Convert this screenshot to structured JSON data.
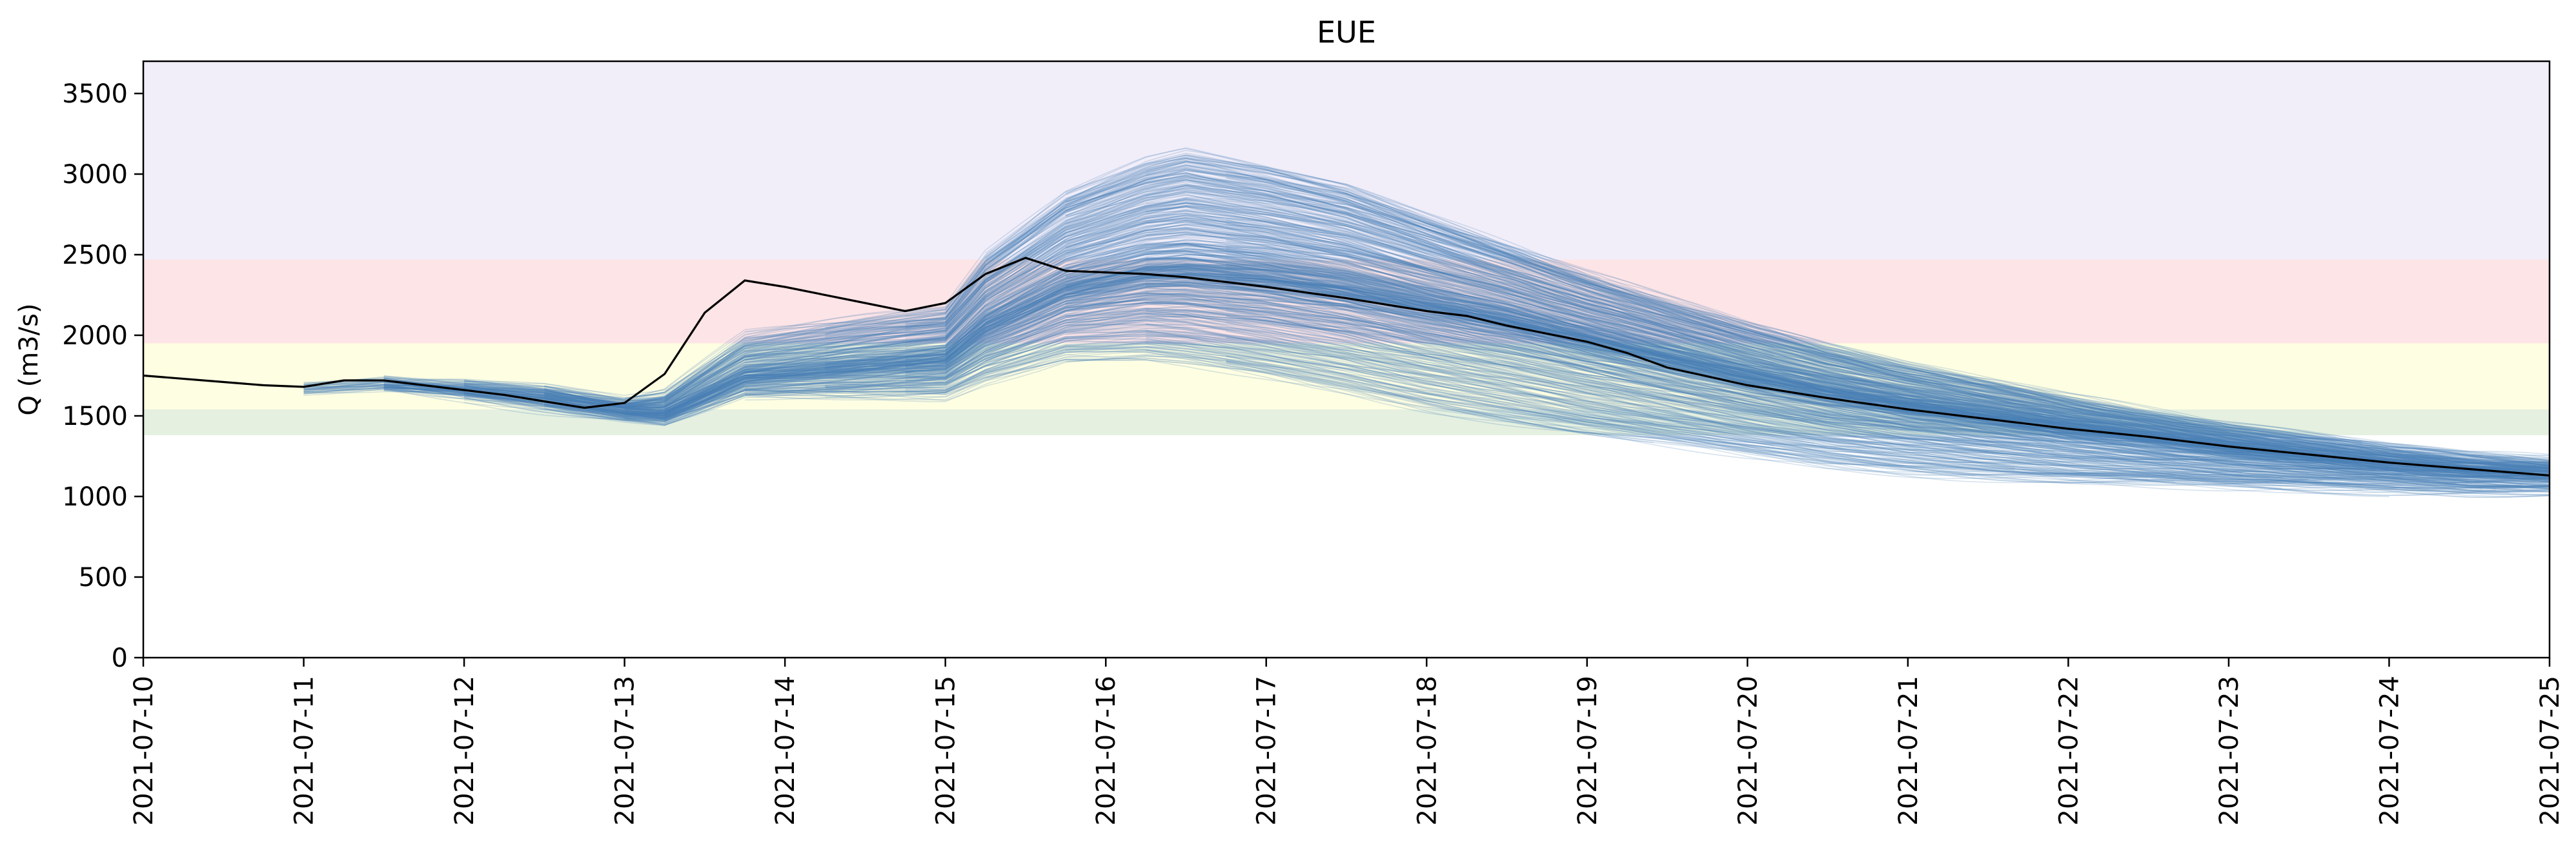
{
  "chart_data": {
    "type": "line",
    "title": "EUE",
    "xlabel": "",
    "ylabel": "Q (m3/s)",
    "xlim": [
      "2021-07-10",
      "2021-07-25"
    ],
    "ylim": [
      0,
      3700
    ],
    "x_ticks": [
      "2021-07-10",
      "2021-07-11",
      "2021-07-12",
      "2021-07-13",
      "2021-07-14",
      "2021-07-15",
      "2021-07-16",
      "2021-07-17",
      "2021-07-18",
      "2021-07-19",
      "2021-07-20",
      "2021-07-21",
      "2021-07-22",
      "2021-07-23",
      "2021-07-24",
      "2021-07-25"
    ],
    "y_ticks": [
      0,
      500,
      1000,
      1500,
      2000,
      2500,
      3000,
      3500
    ],
    "grid": false,
    "threshold_bands": [
      {
        "from": 1380,
        "to": 1540,
        "color": "#e5f0e0"
      },
      {
        "from": 1540,
        "to": 1950,
        "color": "#fefee2"
      },
      {
        "from": 1950,
        "to": 2470,
        "color": "#fde4e6"
      },
      {
        "from": 2470,
        "to": 3700,
        "color": "#f1eef9"
      }
    ],
    "observed": {
      "color": "#000000",
      "x": [
        "2021-07-10T00:00",
        "2021-07-10T12:00",
        "2021-07-10T18:00",
        "2021-07-11T00:00",
        "2021-07-11T06:00",
        "2021-07-11T12:00",
        "2021-07-12T00:00",
        "2021-07-12T06:00",
        "2021-07-12T12:00",
        "2021-07-12T18:00",
        "2021-07-13T00:00",
        "2021-07-13T06:00",
        "2021-07-13T12:00",
        "2021-07-13T18:00",
        "2021-07-14T00:00",
        "2021-07-14T12:00",
        "2021-07-14T18:00",
        "2021-07-15T00:00",
        "2021-07-15T06:00",
        "2021-07-15T12:00",
        "2021-07-15T18:00",
        "2021-07-16T06:00",
        "2021-07-16T12:00",
        "2021-07-17T00:00",
        "2021-07-17T12:00",
        "2021-07-18T00:00",
        "2021-07-18T06:00",
        "2021-07-18T12:00",
        "2021-07-19T00:00",
        "2021-07-19T06:00",
        "2021-07-19T12:00",
        "2021-07-20T00:00",
        "2021-07-20T12:00",
        "2021-07-21T00:00",
        "2021-07-21T12:00",
        "2021-07-22T00:00",
        "2021-07-22T12:00",
        "2021-07-23T00:00",
        "2021-07-23T12:00",
        "2021-07-24T00:00",
        "2021-07-24T12:00",
        "2021-07-24T18:00",
        "2021-07-25T00:00"
      ],
      "y": [
        1750,
        1710,
        1690,
        1680,
        1720,
        1720,
        1660,
        1630,
        1590,
        1550,
        1580,
        1760,
        2140,
        2340,
        2300,
        2200,
        2150,
        2200,
        2380,
        2480,
        2400,
        2380,
        2360,
        2300,
        2230,
        2150,
        2120,
        2060,
        1960,
        1890,
        1800,
        1690,
        1610,
        1540,
        1480,
        1420,
        1370,
        1310,
        1260,
        1210,
        1170,
        1150,
        1130
      ]
    },
    "ensemble": {
      "color": "#4a7fb5",
      "member_count": 600,
      "median": {
        "x": [
          "2021-07-11T00:00",
          "2021-07-11T12:00",
          "2021-07-12T00:00",
          "2021-07-12T12:00",
          "2021-07-13T00:00",
          "2021-07-13T06:00",
          "2021-07-13T18:00",
          "2021-07-14T12:00",
          "2021-07-15T00:00",
          "2021-07-15T06:00",
          "2021-07-15T18:00",
          "2021-07-16T06:00",
          "2021-07-16T12:00",
          "2021-07-17T00:00",
          "2021-07-17T12:00",
          "2021-07-18T00:00",
          "2021-07-18T12:00",
          "2021-07-19T00:00",
          "2021-07-19T12:00",
          "2021-07-20T00:00",
          "2021-07-20T12:00",
          "2021-07-21T00:00",
          "2021-07-21T12:00",
          "2021-07-22T00:00",
          "2021-07-22T12:00",
          "2021-07-23T00:00",
          "2021-07-23T12:00",
          "2021-07-24T00:00",
          "2021-07-24T12:00",
          "2021-07-25T00:00"
        ],
        "y": [
          1670,
          1700,
          1660,
          1610,
          1530,
          1520,
          1750,
          1810,
          1850,
          2050,
          2280,
          2380,
          2390,
          2350,
          2280,
          2180,
          2080,
          1960,
          1850,
          1740,
          1640,
          1560,
          1490,
          1420,
          1360,
          1300,
          1250,
          1200,
          1160,
          1140
        ]
      },
      "spread_low": [
        0,
        0,
        40,
        60,
        40,
        60,
        120,
        180,
        220,
        320,
        420,
        520,
        560,
        600,
        620,
        620,
        600,
        560,
        520,
        480,
        440,
        400,
        360,
        320,
        280,
        240,
        200,
        160,
        130,
        110
      ],
      "spread_high": [
        0,
        0,
        40,
        60,
        60,
        120,
        250,
        300,
        320,
        450,
        600,
        700,
        750,
        700,
        650,
        560,
        480,
        420,
        370,
        330,
        290,
        250,
        220,
        190,
        160,
        140,
        120,
        100,
        90,
        80
      ]
    }
  }
}
